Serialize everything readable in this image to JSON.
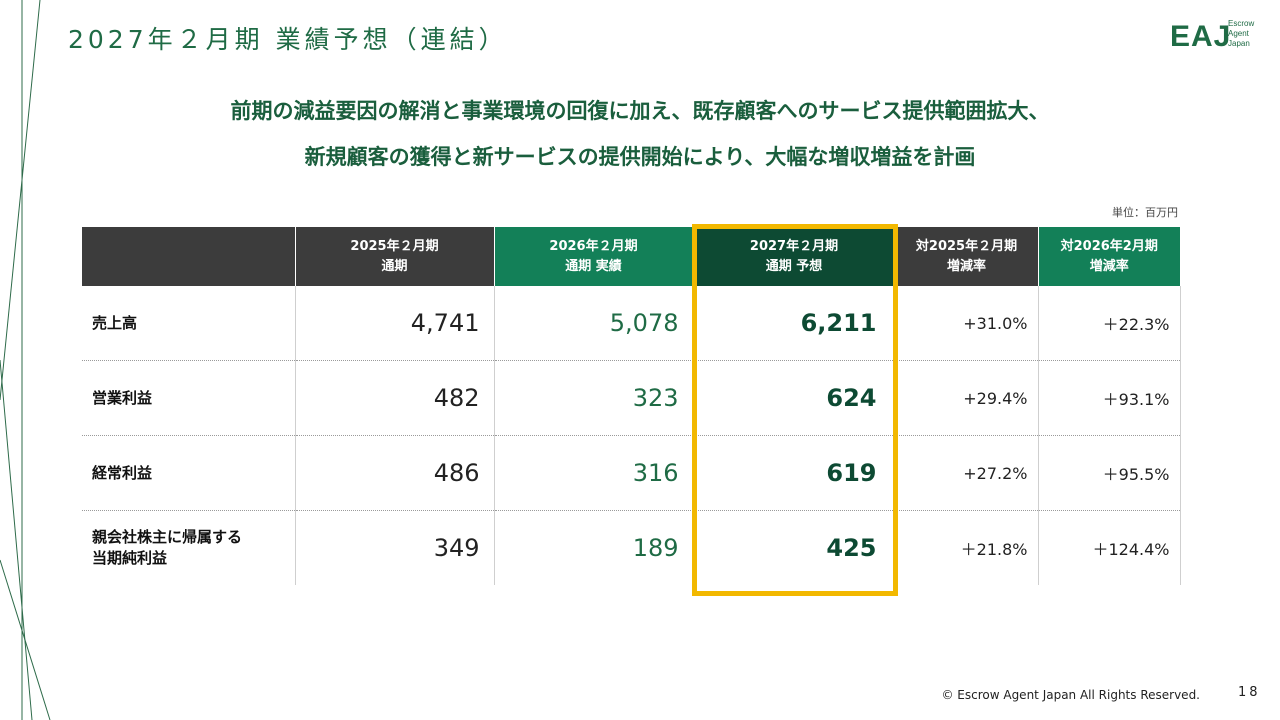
{
  "header": {
    "title": "2027年２月期 業績予想（連結）",
    "logo_mark": "EAJ",
    "logo_sub": [
      "Escrow",
      "Agent",
      "Japan"
    ]
  },
  "headline": {
    "line1": "前期の減益要因の解消と事業環境の回復に加え、既存顧客へのサービス提供範囲拡大、",
    "line2": "新規顧客の獲得と新サービスの提供開始により、大幅な増収増益を計画"
  },
  "unit_label": "単位：百万円",
  "table": {
    "columns": [
      {
        "line1": "",
        "line2": ""
      },
      {
        "line1": "2025年２月期",
        "line2": "通期"
      },
      {
        "line1": "2026年２月期",
        "line2": "通期 実績"
      },
      {
        "line1": "2027年２月期",
        "line2": "通期 予想"
      },
      {
        "line1": "対2025年２月期",
        "line2": "増減率"
      },
      {
        "line1": "対2026年2月期",
        "line2": "増減率"
      }
    ],
    "rows": [
      {
        "label1": "売上高",
        "label2": "",
        "fy2025": "4,741",
        "fy2026": "5,078",
        "fy2027": "6,211",
        "vs2025": "+31.0%",
        "vs2026": "＋22.3%"
      },
      {
        "label1": "営業利益",
        "label2": "",
        "fy2025": "482",
        "fy2026": "323",
        "fy2027": "624",
        "vs2025": "+29.4%",
        "vs2026": "＋93.1%"
      },
      {
        "label1": "経常利益",
        "label2": "",
        "fy2025": "486",
        "fy2026": "316",
        "fy2027": "619",
        "vs2025": "+27.2%",
        "vs2026": "＋95.5%"
      },
      {
        "label1": "親会社株主に帰属する",
        "label2": "当期純利益",
        "fy2025": "349",
        "fy2026": "189",
        "fy2027": "425",
        "vs2025": "＋21.8%",
        "vs2026": "＋124.4%"
      }
    ]
  },
  "footer": {
    "copyright": "© Escrow Agent Japan All Rights Reserved.",
    "page_number": "18"
  },
  "colors": {
    "brand_green": "#1f6b45",
    "dark_green": "#0d4a33",
    "mid_green": "#138058",
    "dark_gray": "#3c3c3c",
    "highlight": "#f2b800"
  }
}
